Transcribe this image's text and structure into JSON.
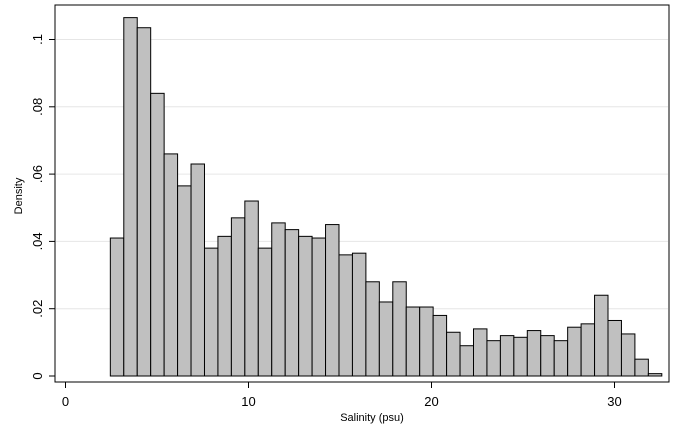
{
  "chart_data": {
    "type": "bar",
    "xlabel": "Salinity (psu)",
    "ylabel": "Density",
    "xlim": [
      0,
      33
    ],
    "ylim": [
      0,
      0.107
    ],
    "xticks": [
      0,
      10,
      20,
      30
    ],
    "xtick_labels": [
      "0",
      "10",
      "20",
      "30"
    ],
    "yticks": [
      0,
      0.02,
      0.04,
      0.06,
      0.08,
      0.1
    ],
    "ytick_labels": [
      "0",
      ".02",
      ".04",
      ".06",
      ".08",
      ".1"
    ],
    "grid": "horizontal",
    "bin_width": 0.735,
    "bin_start": 2.45,
    "values": [
      0.041,
      0.1065,
      0.1035,
      0.084,
      0.066,
      0.0565,
      0.063,
      0.038,
      0.0415,
      0.047,
      0.052,
      0.038,
      0.0455,
      0.0435,
      0.0415,
      0.041,
      0.045,
      0.036,
      0.0365,
      0.028,
      0.022,
      0.028,
      0.0205,
      0.0205,
      0.018,
      0.013,
      0.009,
      0.014,
      0.0105,
      0.012,
      0.0115,
      0.0135,
      0.012,
      0.0105,
      0.0145,
      0.0155,
      0.024,
      0.0165,
      0.0125,
      0.005,
      0.0007
    ],
    "bar_fill": "#c0c0c0",
    "bar_stroke": "#000000"
  }
}
